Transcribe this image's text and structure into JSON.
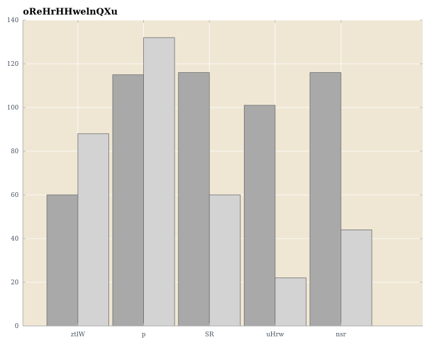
{
  "chart_data": {
    "type": "bar",
    "title": "oReHrHHwelnQXu",
    "xlabel": "",
    "ylabel": "",
    "categories": [
      "ztlW",
      "p",
      "SR",
      "uHrw",
      "nsr"
    ],
    "series": [
      {
        "values": [
          60,
          115,
          116,
          101,
          116
        ],
        "color": "#a9a9a9"
      },
      {
        "values": [
          88,
          132,
          60,
          22,
          44
        ],
        "color": "#d3d3d3"
      }
    ],
    "ylim": [
      0,
      140
    ],
    "yticks": [
      0,
      20,
      40,
      60,
      80,
      100,
      120,
      140
    ],
    "grid": true,
    "background_color": "#efe7d4",
    "legend": "none"
  }
}
